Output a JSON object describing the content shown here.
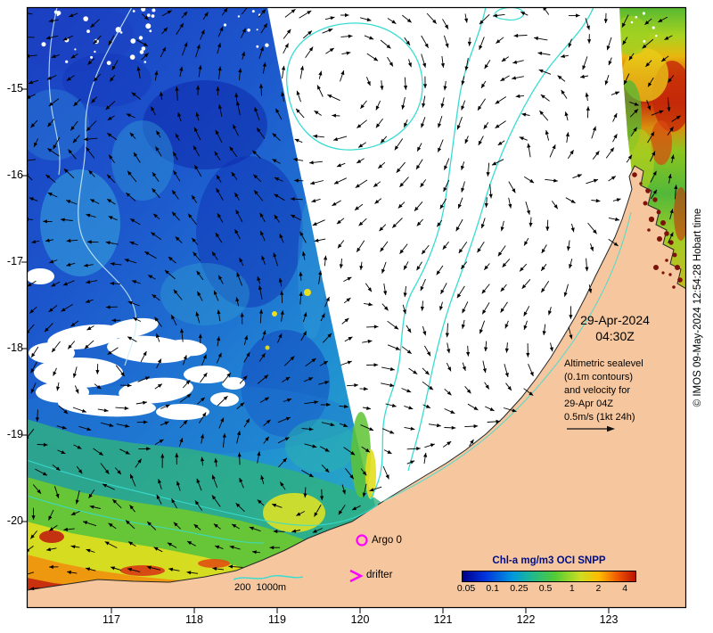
{
  "figure": {
    "timestamp": {
      "date": "29-Apr-2024",
      "time": "04:30Z"
    },
    "annotation": {
      "lines": [
        "Altimetric sealevel",
        "(0.1m contours)",
        "and velocity for",
        "29-Apr 04Z",
        "0.5m/s (1kt 24h)"
      ]
    },
    "markers": {
      "argo": "Argo 0",
      "drifter": "drifter"
    },
    "bathymetry_label": "200  1000m",
    "colorbar": {
      "title": "Chl-a mg/m3 OCI SNPP",
      "ticks": [
        "0.05",
        "0.1",
        "0.25",
        "0.5",
        "1",
        "2",
        "4"
      ]
    },
    "axes": {
      "lat": [
        "-15",
        "-16",
        "-17",
        "-18",
        "-19",
        "-20"
      ],
      "lon": [
        "117",
        "118",
        "119",
        "120",
        "121",
        "122",
        "123"
      ]
    },
    "copyright": "© IMOS 09-May-2024 12:54:28 Hobart time",
    "colors": {
      "contour": "#38dcd2",
      "marker": "#ff00ff",
      "land": "#f6c79e",
      "colorbar_title": "#000f86"
    }
  },
  "chart_data": {
    "type": "heatmap",
    "title": "Chl-a mg/m3 OCI SNPP",
    "xlabel": "",
    "ylabel": "",
    "x_ticks": [
      117,
      118,
      119,
      120,
      121,
      122,
      123
    ],
    "y_ticks": [
      -15,
      -16,
      -17,
      -18,
      -19,
      -20
    ],
    "xlim": [
      116.0,
      123.9
    ],
    "ylim": [
      -21.0,
      -14.1
    ],
    "colorbar_ticks_mg_m3": [
      0.05,
      0.1,
      0.25,
      0.5,
      1,
      2,
      4
    ],
    "colorbar_scale": "log",
    "timestamp": "29-Apr-2024 04:30Z",
    "overlays": [
      "Altimetric sealevel contours (0.1m) and velocity vectors for 29-Apr 04Z, reference 0.5m/s (1kt 24h)",
      "Bathymetry contours 200m and 1000m (cyan)",
      "Argo float marker: Argo 0",
      "Drifter marker"
    ]
  }
}
